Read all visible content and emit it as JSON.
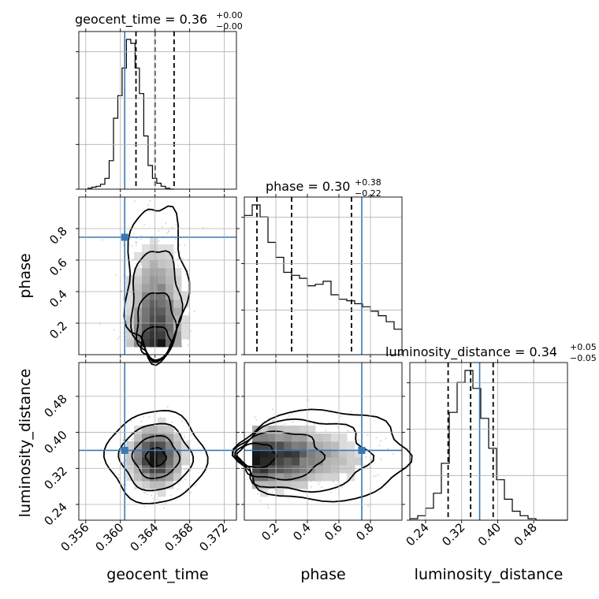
{
  "chart_data": {
    "type": "corner",
    "parameters": [
      "geocent_time",
      "phase",
      "luminosity_distance"
    ],
    "titles": [
      {
        "param": "geocent_time",
        "prefix": "geocent_time = ",
        "value": "0.36",
        "plus": "+0.00",
        "minus": "−0.00"
      },
      {
        "param": "phase",
        "prefix": "phase = ",
        "value": "0.30",
        "plus": "+0.38",
        "minus": "−0.22"
      },
      {
        "param": "luminosity_distance",
        "prefix": "luminosity_distance = ",
        "value": "0.34",
        "plus": "+0.05",
        "minus": "−0.05"
      }
    ],
    "axis_ranges": {
      "geocent_time": [
        0.3552,
        0.3734
      ],
      "phase": [
        0.0,
        1.0
      ],
      "luminosity_distance": [
        0.205,
        0.555
      ]
    },
    "ticks": {
      "geocent_time": {
        "values": [
          0.356,
          0.36,
          0.364,
          0.368,
          0.372
        ],
        "labels": [
          "0.356",
          "0.360",
          "0.364",
          "0.368",
          "0.372"
        ]
      },
      "phase": {
        "values": [
          0.2,
          0.4,
          0.6,
          0.8
        ],
        "labels": [
          "0.2",
          "0.4",
          "0.6",
          "0.8"
        ]
      },
      "luminosity_distance": {
        "values": [
          0.24,
          0.32,
          0.4,
          0.48
        ],
        "labels": [
          "0.24",
          "0.32",
          "0.40",
          "0.48"
        ]
      }
    },
    "truths": {
      "geocent_time": 0.3605,
      "phase": 0.745,
      "luminosity_distance": 0.36
    },
    "quantiles": {
      "geocent_time": [
        0.3618,
        0.364,
        0.3662
      ],
      "phase": [
        0.08,
        0.3,
        0.68
      ],
      "luminosity_distance": [
        0.29,
        0.34,
        0.39
      ]
    },
    "histograms": {
      "geocent_time": {
        "edges_start": 0.3562,
        "bin_width": 0.0005,
        "counts": [
          1,
          2,
          3,
          5,
          11,
          29,
          72,
          95,
          123,
          152,
          148,
          123,
          97,
          54,
          24,
          11,
          6,
          3,
          1,
          0
        ]
      },
      "phase": {
        "edges_start": 0.0,
        "bin_width": 0.05,
        "counts": [
          0.93,
          1.0,
          0.92,
          0.75,
          0.65,
          0.55,
          0.53,
          0.51,
          0.46,
          0.47,
          0.49,
          0.4,
          0.37,
          0.36,
          0.34,
          0.32,
          0.29,
          0.26,
          0.22,
          0.17
        ]
      },
      "luminosity_distance": {
        "edges_start": 0.205,
        "bin_width": 0.0175,
        "counts": [
          0.01,
          0.03,
          0.08,
          0.18,
          0.38,
          0.72,
          0.92,
          1.0,
          0.88,
          0.68,
          0.48,
          0.27,
          0.14,
          0.06,
          0.03,
          0.01,
          0.0,
          0.0,
          0.0,
          0.0
        ]
      }
    },
    "posterior": {
      "geocent_time": {
        "mean": 0.3641,
        "sd": 0.0016
      },
      "phase": {
        "peak": 0.05,
        "sd": 0.22
      },
      "luminosity_distance": {
        "mean": 0.345,
        "sd": 0.035
      }
    }
  }
}
